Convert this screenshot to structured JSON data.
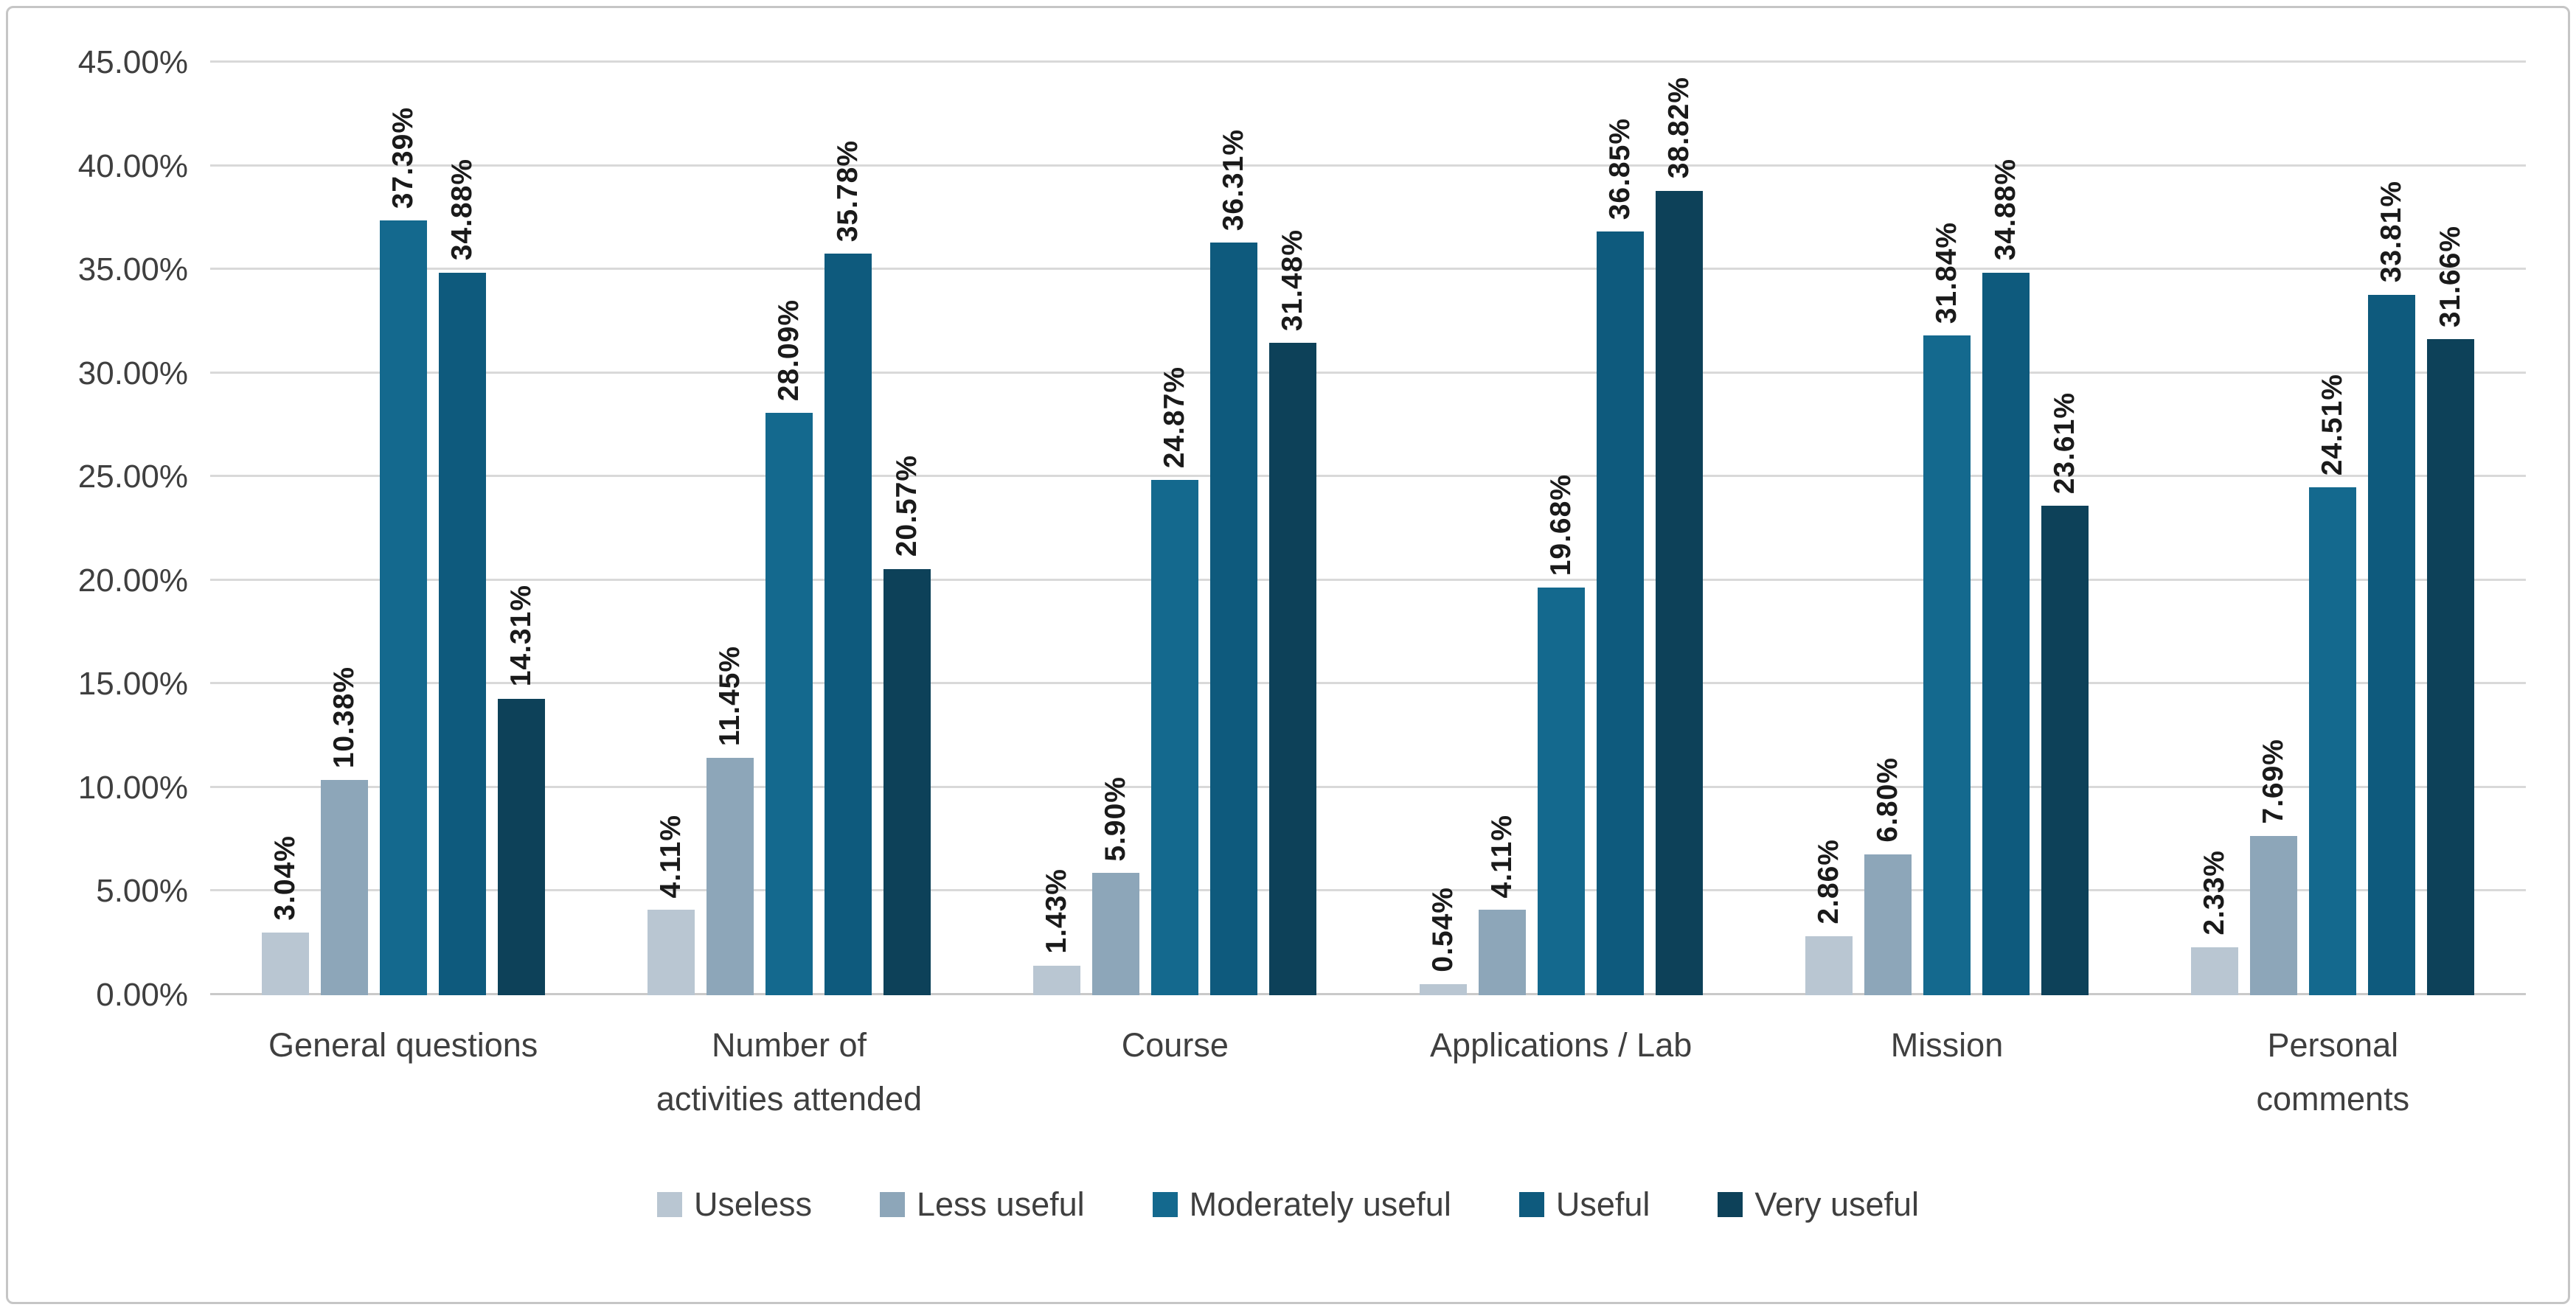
{
  "chart_data": {
    "type": "bar",
    "title": "",
    "categories": [
      "General questions",
      "Number of\nactivities attended",
      "Course",
      "Applications / Lab",
      "Mission",
      "Personal\ncomments"
    ],
    "series": [
      {
        "name": "Useless",
        "color": "#b9c6d2",
        "values": [
          3.04,
          4.11,
          1.43,
          0.54,
          2.86,
          2.33
        ]
      },
      {
        "name": "Less useful",
        "color": "#8da6b9",
        "values": [
          10.38,
          11.45,
          5.9,
          4.11,
          6.8,
          7.69
        ]
      },
      {
        "name": "Moderately useful",
        "color": "#14698e",
        "values": [
          37.39,
          28.09,
          24.87,
          19.68,
          31.84,
          24.51
        ]
      },
      {
        "name": "Useful",
        "color": "#0e5a7d",
        "values": [
          34.88,
          35.78,
          36.31,
          36.85,
          34.88,
          33.81
        ]
      },
      {
        "name": "Very useful",
        "color": "#0d4159",
        "values": [
          14.31,
          20.57,
          31.48,
          38.82,
          23.61,
          31.66
        ]
      }
    ],
    "y_axis": {
      "min": 0,
      "max": 45,
      "step": 5,
      "tick_labels": [
        "0.00%",
        "5.00%",
        "10.00%",
        "15.00%",
        "20.00%",
        "25.00%",
        "30.00%",
        "35.00%",
        "40.00%",
        "45.00%"
      ]
    },
    "data_label_decimals": 2,
    "data_label_suffix": "%",
    "legend_position": "bottom",
    "grid": true,
    "colors": {
      "gridline": "#d9d9d9",
      "axis_text": "#3f3f3f",
      "data_label_text": "#1a1a1a",
      "background": "#ffffff",
      "frame_border": "#c6c6c6"
    }
  }
}
